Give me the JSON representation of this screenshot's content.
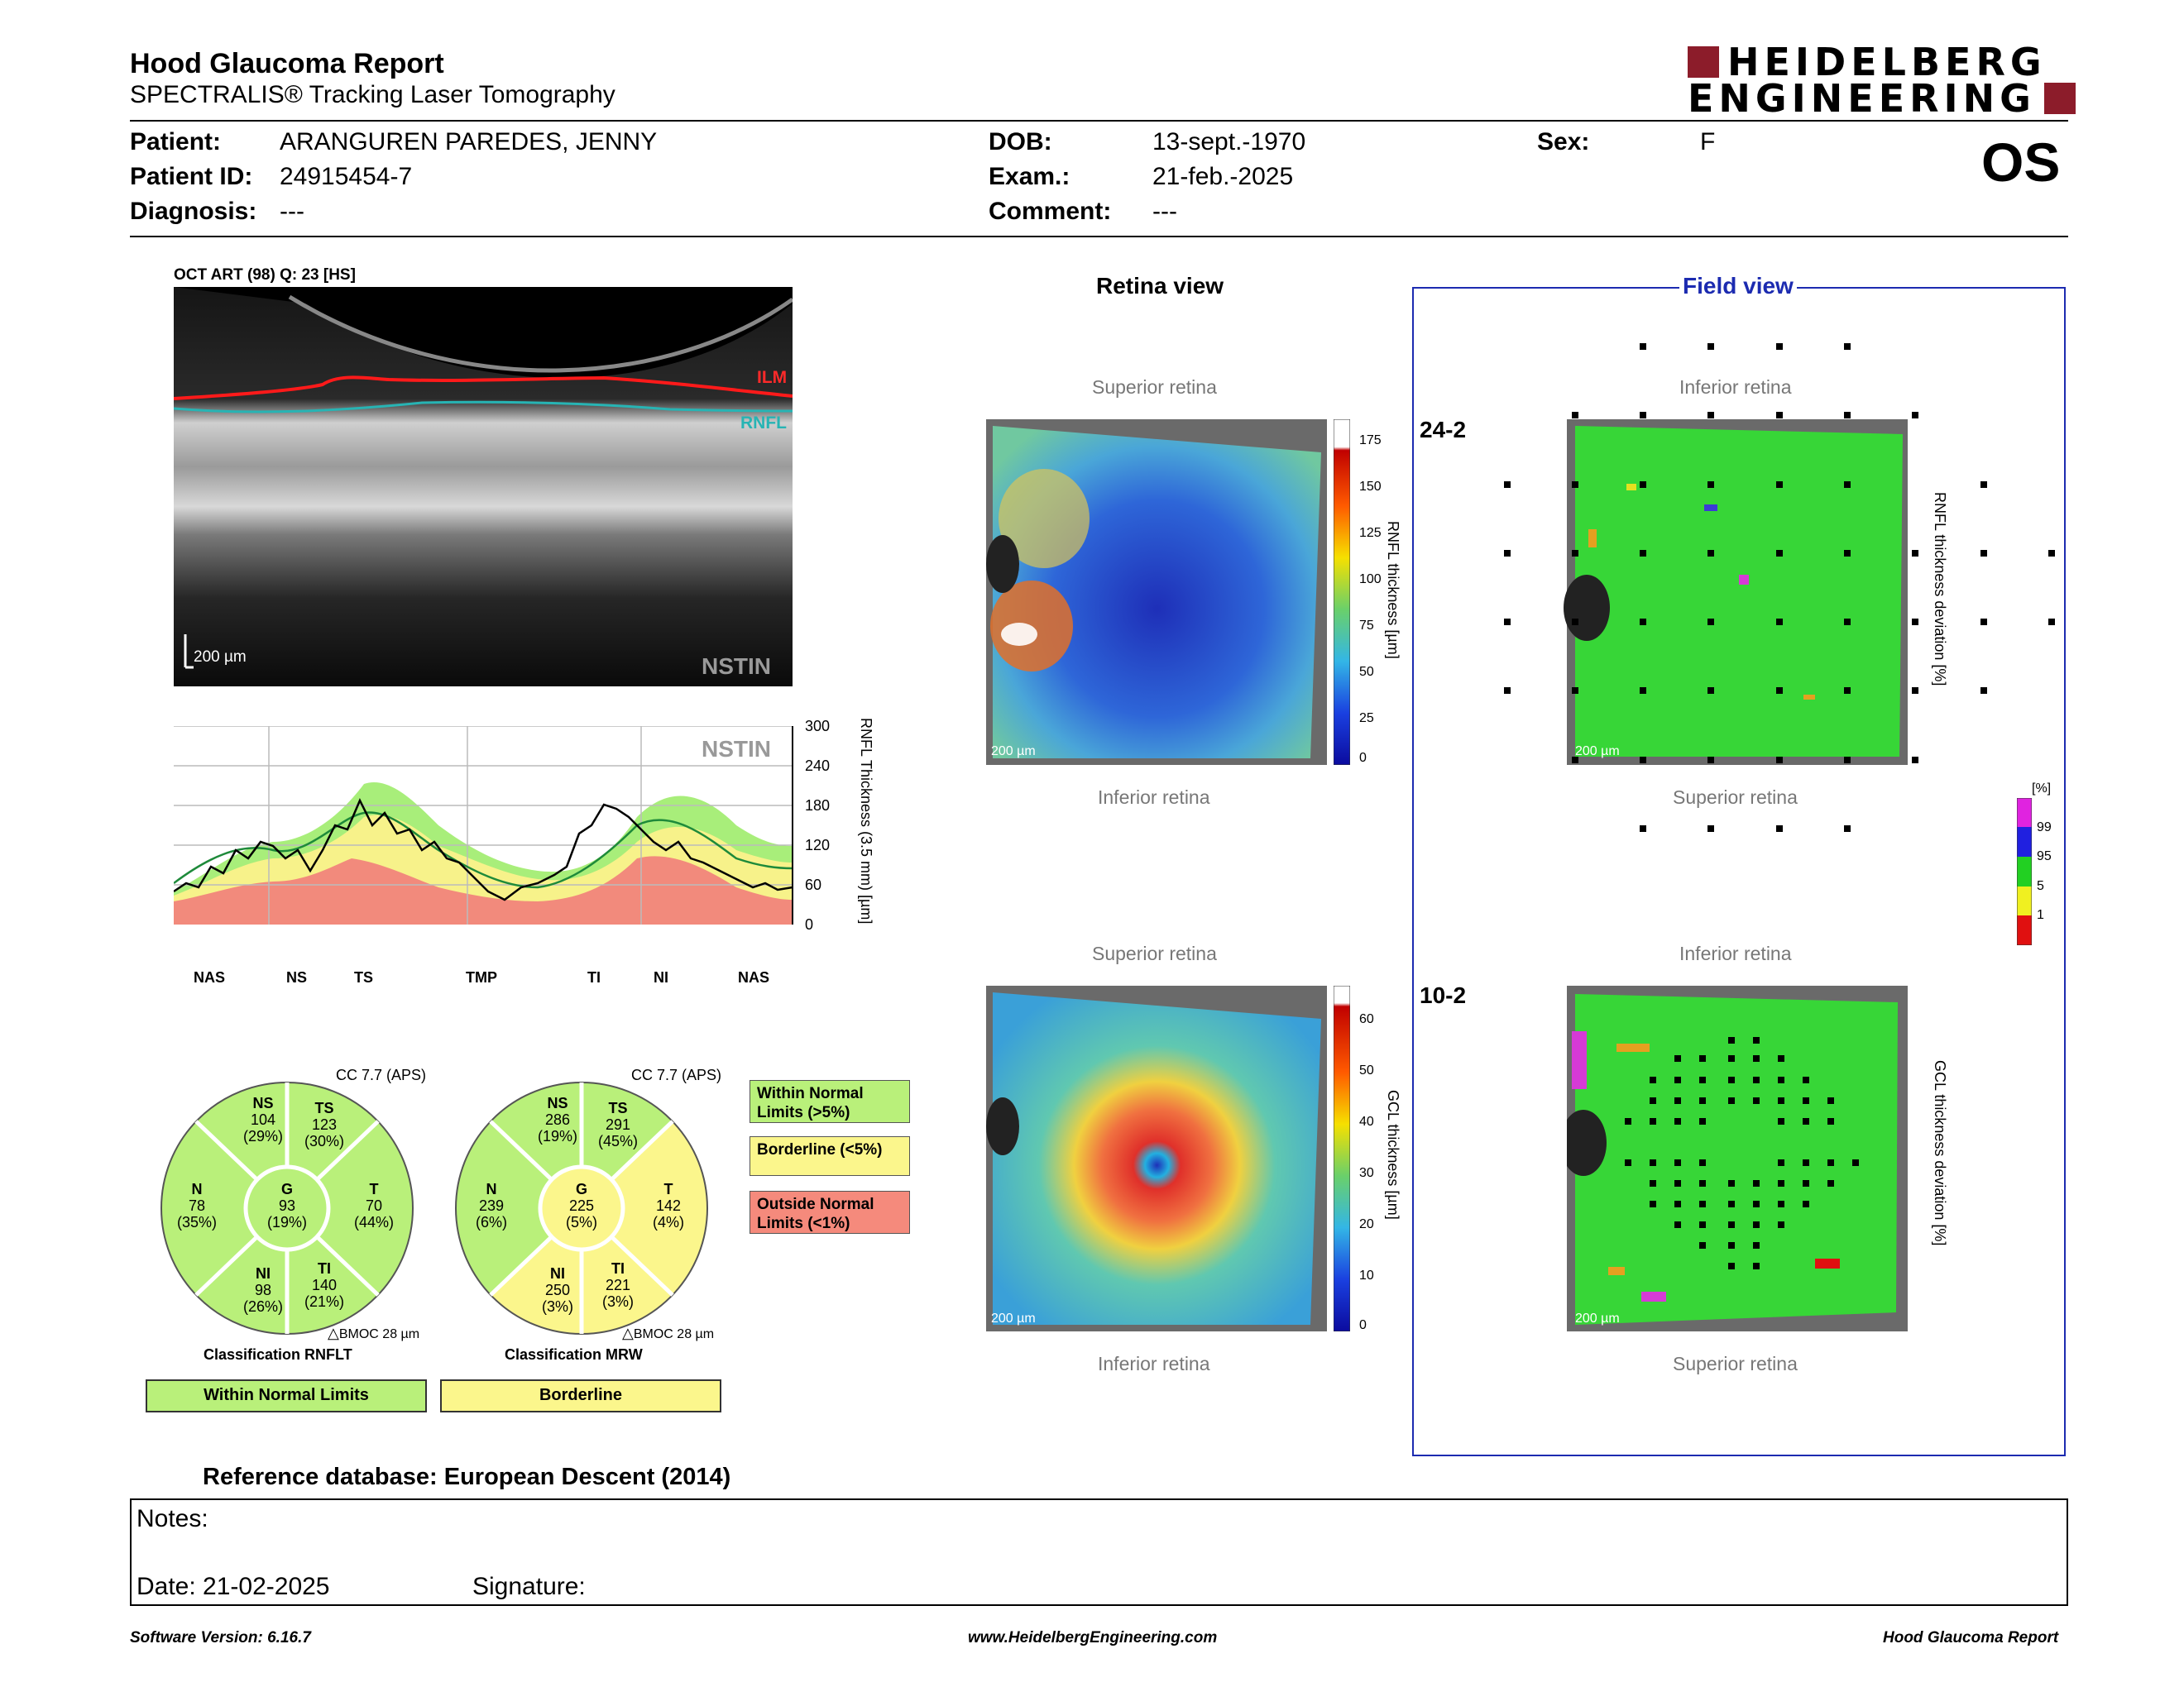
{
  "header": {
    "title": "Hood Glaucoma Report",
    "subtitle": "SPECTRALIS® Tracking Laser Tomography",
    "logo_line1": "HEIDELBERG",
    "logo_line2": "ENGINEERING",
    "eye": "OS"
  },
  "patient": {
    "patient_label": "Patient:",
    "patient_value": "ARANGUREN PAREDES, JENNY",
    "id_label": "Patient ID:",
    "id_value": "24915454-7",
    "diagnosis_label": "Diagnosis:",
    "diagnosis_value": "---",
    "dob_label": "DOB:",
    "dob_value": "13-sept.-1970",
    "exam_label": "Exam.:",
    "exam_value": "21-feb.-2025",
    "comment_label": "Comment:",
    "comment_value": "---",
    "sex_label": "Sex:",
    "sex_value": "F"
  },
  "oct": {
    "caption": "OCT ART (98) Q: 23 [HS]",
    "ilm": "ILM",
    "rnfl": "RNFL",
    "scale": "200 µm",
    "nstin": "NSTIN"
  },
  "profile": {
    "nstin": "NSTIN",
    "yticks": [
      "300",
      "240",
      "180",
      "120",
      "60",
      "0"
    ],
    "ylabel": "RNFL Thickness (3.5 mm) [µm]",
    "xlabels": [
      "NAS",
      "NS",
      "TS",
      "TMP",
      "TI",
      "NI",
      "NAS"
    ]
  },
  "rnflt": {
    "cc": "CC 7.7 (APS)",
    "sectors": {
      "NS": {
        "name": "NS",
        "value": "104",
        "pct": "(29%)"
      },
      "TS": {
        "name": "TS",
        "value": "123",
        "pct": "(30%)"
      },
      "N": {
        "name": "N",
        "value": "78",
        "pct": "(35%)"
      },
      "G": {
        "name": "G",
        "value": "93",
        "pct": "(19%)"
      },
      "T": {
        "name": "T",
        "value": "70",
        "pct": "(44%)"
      },
      "NI": {
        "name": "NI",
        "value": "98",
        "pct": "(26%)"
      },
      "TI": {
        "name": "TI",
        "value": "140",
        "pct": "(21%)"
      }
    },
    "bmoc": "BMOC 28 µm",
    "classification_label": "Classification RNFLT",
    "classification": "Within Normal Limits"
  },
  "mrw": {
    "cc": "CC 7.7 (APS)",
    "sectors": {
      "NS": {
        "name": "NS",
        "value": "286",
        "pct": "(19%)"
      },
      "TS": {
        "name": "TS",
        "value": "291",
        "pct": "(45%)"
      },
      "N": {
        "name": "N",
        "value": "239",
        "pct": "(6%)"
      },
      "G": {
        "name": "G",
        "value": "225",
        "pct": "(5%)"
      },
      "T": {
        "name": "T",
        "value": "142",
        "pct": "(4%)"
      },
      "NI": {
        "name": "NI",
        "value": "250",
        "pct": "(3%)"
      },
      "TI": {
        "name": "TI",
        "value": "221",
        "pct": "(3%)"
      }
    },
    "bmoc": "BMOC 28 µm",
    "classification_label": "Classification MRW",
    "classification": "Borderline"
  },
  "legend": {
    "wnl": "Within Normal Limits (>5%)",
    "borderline": "Borderline (<5%)",
    "onl": "Outside Normal Limits (<1%)"
  },
  "retina_view": {
    "title": "Retina view",
    "superior1": "Superior retina",
    "inferior1": "Inferior retina",
    "rnfl_scale_label": "RNFL thickness [µm]",
    "rnfl_ticks": [
      "175",
      "150",
      "125",
      "100",
      "75",
      "50",
      "25",
      "0"
    ],
    "superior2": "Superior retina",
    "inferior2": "Inferior retina",
    "gcl_scale_label": "GCL thickness [µm]",
    "gcl_ticks": [
      "60",
      "50",
      "40",
      "30",
      "20",
      "10",
      "0"
    ],
    "img_scale": "200 µm"
  },
  "field_view": {
    "title": "Field view",
    "label_24": "24-2",
    "inferior1": "Inferior retina",
    "superior1": "Superior retina",
    "rnfl_dev_label": "RNFL thickness deviation [%]",
    "label_10": "10-2",
    "inferior2": "Inferior retina",
    "superior2": "Superior retina",
    "gcl_dev_label": "GCL thickness deviation [%]",
    "pct_unit": "[%]",
    "pct_ticks": [
      "99",
      "95",
      "5",
      "1"
    ],
    "img_scale": "200 µm"
  },
  "reference": "Reference database: European Descent (2014)",
  "notes": {
    "label": "Notes:",
    "date": "Date: 21-02-2025",
    "signature": "Signature:"
  },
  "footer": {
    "left": "Software Version: 6.16.7",
    "center": "www.HeidelbergEngineering.com",
    "right": "Hood Glaucoma Report"
  },
  "colors": {
    "brand": "#8c1c2a",
    "wnl": "#b9f07a",
    "borderline": "#fbf68c",
    "onl": "#f58a7c",
    "field_frame": "#1c2bb0"
  }
}
